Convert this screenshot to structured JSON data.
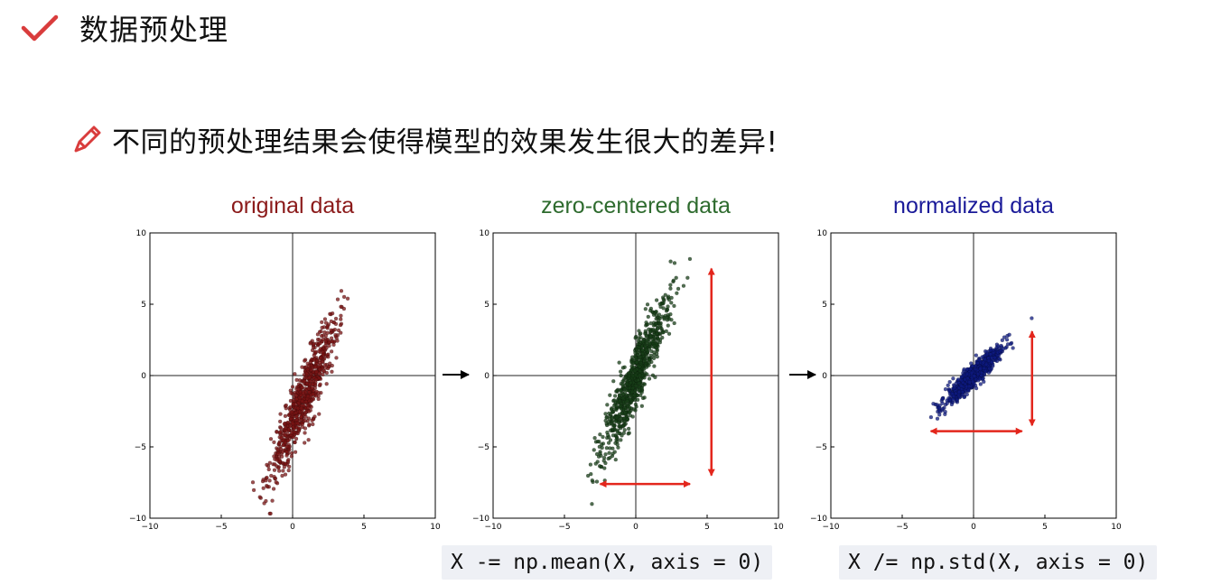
{
  "heading": {
    "title": "数据预处理",
    "icon": "check-icon",
    "color": "#d93c3c"
  },
  "subheading": {
    "text": "不同的预处理结果会使得模型的效果发生很大的差异!",
    "icon": "pencil-icon",
    "color": "#d93c3c"
  },
  "code": {
    "mean": "X -= np.mean(X, axis = 0)",
    "std": "X /= np.std(X, axis = 0)"
  },
  "chart_data": [
    {
      "type": "scatter",
      "title": "original data",
      "title_color": "#8b1a1a",
      "point_color": "#7a1414",
      "xlim": [
        -10,
        10
      ],
      "ylim": [
        -10,
        10
      ],
      "xticks": [
        "−10",
        "−5",
        "0",
        "5",
        "10"
      ],
      "yticks": [
        "10",
        "5",
        "0",
        "−5",
        "−10"
      ],
      "cloud": {
        "mean_x": 0.8,
        "mean_y": -1.5,
        "std_x": 1.2,
        "std_y": 2.8,
        "corr": 0.92,
        "n": 800
      },
      "arrows": []
    },
    {
      "type": "scatter",
      "title": "zero-centered data",
      "title_color": "#2e6b2e",
      "point_color": "#173d17",
      "xlim": [
        -10,
        10
      ],
      "ylim": [
        -10,
        10
      ],
      "xticks": [
        "−10",
        "−5",
        "0",
        "5",
        "10"
      ],
      "yticks": [
        "10",
        "5",
        "0",
        "−5",
        "−10"
      ],
      "cloud": {
        "mean_x": 0.0,
        "mean_y": 0.0,
        "std_x": 1.2,
        "std_y": 2.8,
        "corr": 0.92,
        "n": 800
      },
      "arrows": [
        {
          "from": [
            5.3,
            7.5
          ],
          "to": [
            5.3,
            -7.0
          ]
        },
        {
          "from": [
            -2.5,
            -7.6
          ],
          "to": [
            3.8,
            -7.6
          ]
        }
      ]
    },
    {
      "type": "scatter",
      "title": "normalized data",
      "title_color": "#1a1a99",
      "point_color": "#0d1a80",
      "xlim": [
        -10,
        10
      ],
      "ylim": [
        -10,
        10
      ],
      "xticks": [
        "−10",
        "−5",
        "0",
        "5",
        "10"
      ],
      "yticks": [
        "10",
        "5",
        "0",
        "−5",
        "−10"
      ],
      "cloud": {
        "mean_x": 0.0,
        "mean_y": 0.0,
        "std_x": 1.0,
        "std_y": 1.0,
        "corr": 0.93,
        "n": 800
      },
      "arrows": [
        {
          "from": [
            4.1,
            3.1
          ],
          "to": [
            4.1,
            -3.5
          ]
        },
        {
          "from": [
            -3.0,
            -3.9
          ],
          "to": [
            3.4,
            -3.9
          ]
        }
      ]
    }
  ]
}
